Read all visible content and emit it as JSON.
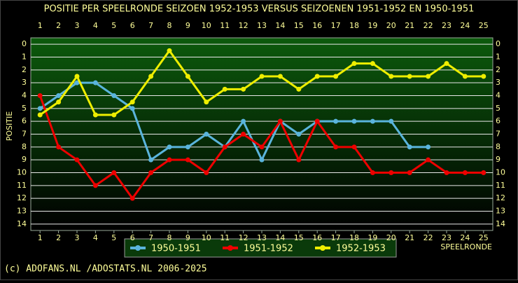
{
  "chart_data": {
    "type": "line",
    "title": "POSITIE PER SPEELRONDE SEIZOEN 1952-1953 VERSUS SEIZOENEN 1951-1952 EN 1950-1951",
    "x_label": "SPEELRONDE",
    "y_label": "POSITIE",
    "footer": "(c) ADOFANS.NL /ADOSTATS.NL 2006-2025",
    "x": [
      1,
      2,
      3,
      4,
      5,
      6,
      7,
      8,
      9,
      10,
      11,
      12,
      13,
      14,
      15,
      16,
      17,
      18,
      19,
      20,
      21,
      22,
      23,
      24,
      25
    ],
    "xlim": [
      0.5,
      25.5
    ],
    "xticks": [
      1,
      2,
      3,
      4,
      5,
      6,
      7,
      8,
      9,
      10,
      11,
      12,
      13,
      14,
      15,
      16,
      17,
      18,
      19,
      20,
      21,
      22,
      23,
      24,
      25
    ],
    "ylim": [
      14.5,
      -0.5
    ],
    "yticks": [
      0,
      1,
      2,
      3,
      4,
      5,
      6,
      7,
      8,
      9,
      10,
      11,
      12,
      13,
      14
    ],
    "y_inverted": true,
    "grid": true,
    "series": [
      {
        "name": "1950-1951",
        "color": "#5ab4dc",
        "values": [
          5,
          4,
          3,
          3,
          4,
          5,
          9,
          8,
          8,
          7,
          8,
          6,
          9,
          6,
          7,
          6,
          6,
          6,
          6,
          6,
          8,
          8,
          null,
          null,
          null
        ]
      },
      {
        "name": "1951-1952",
        "color": "#ee0000",
        "values": [
          4,
          8,
          9,
          11,
          10,
          12,
          10,
          9,
          9,
          10,
          8,
          7,
          8,
          6,
          9,
          6,
          8,
          8,
          10,
          10,
          10,
          9,
          10,
          10,
          10
        ]
      },
      {
        "name": "1952-1953",
        "color": "#eeee00",
        "values": [
          5.5,
          4.5,
          2.5,
          5.5,
          5.5,
          4.5,
          2.5,
          0.5,
          2.5,
          4.5,
          3.5,
          3.5,
          2.5,
          2.5,
          3.5,
          2.5,
          2.5,
          1.5,
          1.5,
          2.5,
          2.5,
          2.5,
          1.5,
          2.5,
          2.5
        ]
      }
    ]
  }
}
